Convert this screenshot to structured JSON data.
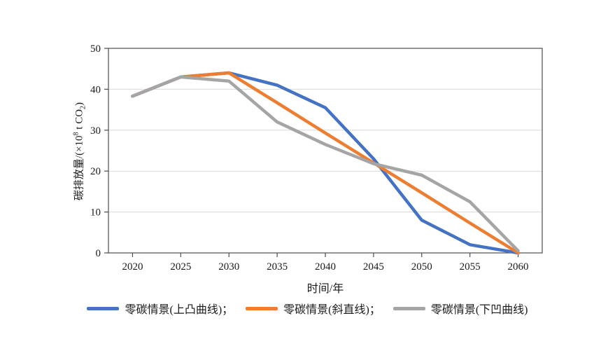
{
  "chart_data": {
    "type": "line",
    "title": "",
    "xlabel": "时间/年",
    "ylabel": "碳排放量/(×10⁸ t CO₂)",
    "ylabel_parts": {
      "prefix": "碳排放量/(×10",
      "sup": "8",
      "mid": " t CO",
      "sub": "2",
      "suffix": ")"
    },
    "categories": [
      2020,
      2025,
      2030,
      2035,
      2040,
      2045,
      2050,
      2055,
      2060
    ],
    "ylim": [
      0,
      50
    ],
    "ytick_step": 10,
    "grid": "horizontal-only",
    "legend_position": "bottom",
    "series": [
      {
        "name": "零碳情景(上凸曲线)",
        "legend_label": "零碳情景(上凸曲线)；",
        "color": "#4472C4",
        "values": [
          38.3,
          43,
          44,
          41,
          35.5,
          23,
          8,
          2,
          0
        ]
      },
      {
        "name": "零碳情景(斜直线)",
        "legend_label": "零碳情景(斜直线)；",
        "color": "#ED7D31",
        "values": [
          38.3,
          43,
          44,
          36.7,
          29.3,
          22,
          14.7,
          7.3,
          0
        ]
      },
      {
        "name": "零碳情景(下凹曲线)",
        "legend_label": "零碳情景(下凹曲线)",
        "color": "#A5A5A5",
        "values": [
          38.3,
          43,
          42,
          32,
          26.5,
          21.8,
          19,
          12.5,
          0.5
        ]
      }
    ],
    "colors": {
      "gridline": "#D9D9D9",
      "axis": "#4d4d4d",
      "text": "#1a1a1a",
      "background": "#ffffff"
    }
  }
}
